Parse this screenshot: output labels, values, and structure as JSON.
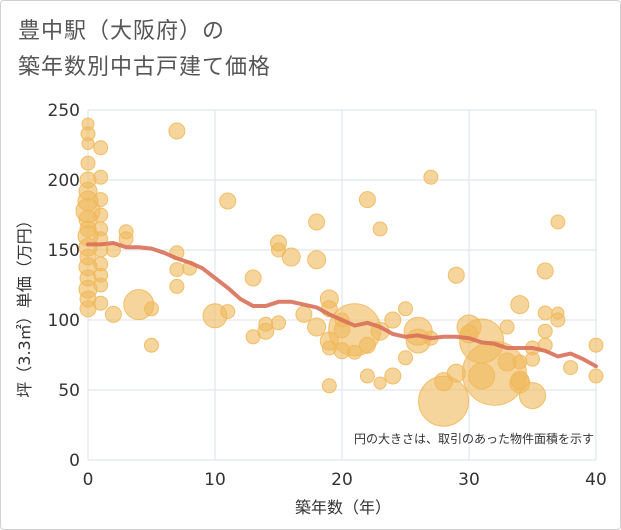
{
  "title_line1": "豊中駅（大阪府）の",
  "title_line2": "築年数別中古戸建て価格",
  "chart_data": {
    "type": "scatter",
    "title": "豊中駅（大阪府）の築年数別中古戸建て価格",
    "xlabel": "築年数（年）",
    "ylabel": "坪（3.3㎡）単価（万円）",
    "note": "円の大きさは、取引のあった物件面積を示す",
    "xlim": [
      0,
      40
    ],
    "ylim": [
      0,
      250
    ],
    "xticks": [
      0,
      10,
      20,
      30,
      40
    ],
    "yticks": [
      0,
      50,
      100,
      150,
      200,
      250
    ],
    "colors": {
      "bubble": "#f0b95c",
      "trend": "#d9705a",
      "grid": "#dde3ea"
    },
    "points": [
      {
        "x": 0,
        "y": 240,
        "s": 6
      },
      {
        "x": 0,
        "y": 233,
        "s": 7
      },
      {
        "x": 0,
        "y": 226,
        "s": 6
      },
      {
        "x": 0,
        "y": 212,
        "s": 7
      },
      {
        "x": 0,
        "y": 200,
        "s": 8
      },
      {
        "x": 0,
        "y": 192,
        "s": 9
      },
      {
        "x": 0,
        "y": 185,
        "s": 10
      },
      {
        "x": 0,
        "y": 178,
        "s": 12
      },
      {
        "x": 0,
        "y": 172,
        "s": 9
      },
      {
        "x": 0,
        "y": 165,
        "s": 8
      },
      {
        "x": 0,
        "y": 160,
        "s": 10
      },
      {
        "x": 0,
        "y": 152,
        "s": 9
      },
      {
        "x": 0,
        "y": 145,
        "s": 8
      },
      {
        "x": 0,
        "y": 138,
        "s": 9
      },
      {
        "x": 0,
        "y": 130,
        "s": 8
      },
      {
        "x": 0,
        "y": 122,
        "s": 9
      },
      {
        "x": 0,
        "y": 115,
        "s": 8
      },
      {
        "x": 0,
        "y": 108,
        "s": 8
      },
      {
        "x": 1,
        "y": 223,
        "s": 7
      },
      {
        "x": 1,
        "y": 202,
        "s": 7
      },
      {
        "x": 1,
        "y": 186,
        "s": 7
      },
      {
        "x": 1,
        "y": 175,
        "s": 7
      },
      {
        "x": 1,
        "y": 165,
        "s": 7
      },
      {
        "x": 1,
        "y": 158,
        "s": 7
      },
      {
        "x": 1,
        "y": 150,
        "s": 7
      },
      {
        "x": 1,
        "y": 140,
        "s": 7
      },
      {
        "x": 1,
        "y": 132,
        "s": 7
      },
      {
        "x": 1,
        "y": 125,
        "s": 7
      },
      {
        "x": 1,
        "y": 112,
        "s": 7
      },
      {
        "x": 2,
        "y": 104,
        "s": 8
      },
      {
        "x": 2,
        "y": 150,
        "s": 7
      },
      {
        "x": 3,
        "y": 163,
        "s": 7
      },
      {
        "x": 3,
        "y": 158,
        "s": 7
      },
      {
        "x": 4,
        "y": 111,
        "s": 15
      },
      {
        "x": 5,
        "y": 108,
        "s": 7
      },
      {
        "x": 5,
        "y": 82,
        "s": 7
      },
      {
        "x": 7,
        "y": 235,
        "s": 8
      },
      {
        "x": 7,
        "y": 148,
        "s": 7
      },
      {
        "x": 7,
        "y": 136,
        "s": 7
      },
      {
        "x": 7,
        "y": 124,
        "s": 7
      },
      {
        "x": 8,
        "y": 137,
        "s": 7
      },
      {
        "x": 10,
        "y": 103,
        "s": 12
      },
      {
        "x": 11,
        "y": 185,
        "s": 8
      },
      {
        "x": 11,
        "y": 106,
        "s": 7
      },
      {
        "x": 13,
        "y": 130,
        "s": 8
      },
      {
        "x": 13,
        "y": 88,
        "s": 7
      },
      {
        "x": 14,
        "y": 97,
        "s": 7
      },
      {
        "x": 14,
        "y": 92,
        "s": 8
      },
      {
        "x": 15,
        "y": 155,
        "s": 8
      },
      {
        "x": 15,
        "y": 150,
        "s": 7
      },
      {
        "x": 15,
        "y": 98,
        "s": 7
      },
      {
        "x": 16,
        "y": 145,
        "s": 9
      },
      {
        "x": 17,
        "y": 104,
        "s": 8
      },
      {
        "x": 18,
        "y": 170,
        "s": 8
      },
      {
        "x": 18,
        "y": 143,
        "s": 9
      },
      {
        "x": 18,
        "y": 95,
        "s": 9
      },
      {
        "x": 19,
        "y": 115,
        "s": 9
      },
      {
        "x": 19,
        "y": 108,
        "s": 8
      },
      {
        "x": 19,
        "y": 85,
        "s": 9
      },
      {
        "x": 19,
        "y": 80,
        "s": 7
      },
      {
        "x": 19,
        "y": 53,
        "s": 7
      },
      {
        "x": 20,
        "y": 100,
        "s": 7
      },
      {
        "x": 20,
        "y": 93,
        "s": 8
      },
      {
        "x": 20,
        "y": 78,
        "s": 8
      },
      {
        "x": 21,
        "y": 93,
        "s": 26
      },
      {
        "x": 21,
        "y": 77,
        "s": 7
      },
      {
        "x": 22,
        "y": 186,
        "s": 8
      },
      {
        "x": 22,
        "y": 82,
        "s": 8
      },
      {
        "x": 22,
        "y": 60,
        "s": 7
      },
      {
        "x": 23,
        "y": 165,
        "s": 7
      },
      {
        "x": 23,
        "y": 92,
        "s": 9
      },
      {
        "x": 23,
        "y": 55,
        "s": 6
      },
      {
        "x": 24,
        "y": 100,
        "s": 8
      },
      {
        "x": 24,
        "y": 60,
        "s": 8
      },
      {
        "x": 25,
        "y": 108,
        "s": 7
      },
      {
        "x": 25,
        "y": 73,
        "s": 7
      },
      {
        "x": 26,
        "y": 92,
        "s": 14
      },
      {
        "x": 26,
        "y": 85,
        "s": 12
      },
      {
        "x": 27,
        "y": 202,
        "s": 7
      },
      {
        "x": 27,
        "y": 87,
        "s": 7
      },
      {
        "x": 28,
        "y": 56,
        "s": 9
      },
      {
        "x": 28,
        "y": 42,
        "s": 25
      },
      {
        "x": 29,
        "y": 132,
        "s": 8
      },
      {
        "x": 29,
        "y": 62,
        "s": 9
      },
      {
        "x": 30,
        "y": 95,
        "s": 12
      },
      {
        "x": 30,
        "y": 90,
        "s": 9
      },
      {
        "x": 31,
        "y": 85,
        "s": 22
      },
      {
        "x": 31,
        "y": 60,
        "s": 13
      },
      {
        "x": 32,
        "y": 62,
        "s": 32
      },
      {
        "x": 33,
        "y": 95,
        "s": 7
      },
      {
        "x": 33,
        "y": 70,
        "s": 9
      },
      {
        "x": 34,
        "y": 111,
        "s": 9
      },
      {
        "x": 34,
        "y": 70,
        "s": 7
      },
      {
        "x": 34,
        "y": 57,
        "s": 9
      },
      {
        "x": 34,
        "y": 55,
        "s": 10
      },
      {
        "x": 35,
        "y": 80,
        "s": 7
      },
      {
        "x": 35,
        "y": 72,
        "s": 7
      },
      {
        "x": 35,
        "y": 46,
        "s": 13
      },
      {
        "x": 36,
        "y": 135,
        "s": 8
      },
      {
        "x": 36,
        "y": 105,
        "s": 7
      },
      {
        "x": 36,
        "y": 92,
        "s": 7
      },
      {
        "x": 36,
        "y": 82,
        "s": 7
      },
      {
        "x": 37,
        "y": 170,
        "s": 7
      },
      {
        "x": 37,
        "y": 105,
        "s": 6
      },
      {
        "x": 37,
        "y": 100,
        "s": 7
      },
      {
        "x": 38,
        "y": 66,
        "s": 7
      },
      {
        "x": 40,
        "y": 82,
        "s": 7
      },
      {
        "x": 40,
        "y": 60,
        "s": 7
      }
    ],
    "trend": [
      {
        "x": 0,
        "y": 154
      },
      {
        "x": 1,
        "y": 154
      },
      {
        "x": 2,
        "y": 155
      },
      {
        "x": 3,
        "y": 152
      },
      {
        "x": 4,
        "y": 152
      },
      {
        "x": 5,
        "y": 151
      },
      {
        "x": 6,
        "y": 148
      },
      {
        "x": 7,
        "y": 144
      },
      {
        "x": 8,
        "y": 141
      },
      {
        "x": 9,
        "y": 137
      },
      {
        "x": 10,
        "y": 130
      },
      {
        "x": 11,
        "y": 123
      },
      {
        "x": 12,
        "y": 115
      },
      {
        "x": 13,
        "y": 110
      },
      {
        "x": 14,
        "y": 110
      },
      {
        "x": 15,
        "y": 113
      },
      {
        "x": 16,
        "y": 113
      },
      {
        "x": 17,
        "y": 111
      },
      {
        "x": 18,
        "y": 109
      },
      {
        "x": 19,
        "y": 104
      },
      {
        "x": 20,
        "y": 100
      },
      {
        "x": 21,
        "y": 96
      },
      {
        "x": 22,
        "y": 98
      },
      {
        "x": 23,
        "y": 95
      },
      {
        "x": 24,
        "y": 90
      },
      {
        "x": 25,
        "y": 88
      },
      {
        "x": 26,
        "y": 89
      },
      {
        "x": 27,
        "y": 87
      },
      {
        "x": 28,
        "y": 88
      },
      {
        "x": 29,
        "y": 88
      },
      {
        "x": 30,
        "y": 87
      },
      {
        "x": 31,
        "y": 84
      },
      {
        "x": 32,
        "y": 83
      },
      {
        "x": 33,
        "y": 80
      },
      {
        "x": 34,
        "y": 80
      },
      {
        "x": 35,
        "y": 80
      },
      {
        "x": 36,
        "y": 78
      },
      {
        "x": 37,
        "y": 74
      },
      {
        "x": 38,
        "y": 76
      },
      {
        "x": 39,
        "y": 72
      },
      {
        "x": 40,
        "y": 67
      }
    ]
  }
}
